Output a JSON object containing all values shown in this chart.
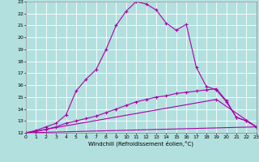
{
  "xlabel": "Windchill (Refroidissement éolien,°C)",
  "xlim": [
    0,
    23
  ],
  "ylim": [
    12,
    23
  ],
  "xticks": [
    0,
    1,
    2,
    3,
    4,
    5,
    6,
    7,
    8,
    9,
    10,
    11,
    12,
    13,
    14,
    15,
    16,
    17,
    18,
    19,
    20,
    21,
    22,
    23
  ],
  "yticks": [
    12,
    13,
    14,
    15,
    16,
    17,
    18,
    19,
    20,
    21,
    22,
    23
  ],
  "bg_color": "#b2e0df",
  "grid_color": "#ffffff",
  "line_color": "#aa00aa",
  "lines": [
    {
      "x": [
        0,
        1,
        2,
        3,
        4,
        5,
        6,
        7,
        8,
        9,
        10,
        11,
        12,
        13,
        14,
        15,
        16,
        17,
        18,
        19,
        20,
        21,
        22,
        23
      ],
      "y": [
        12,
        12.2,
        12.5,
        12.8,
        13.5,
        15.5,
        16.5,
        17.3,
        19.0,
        21.0,
        22.2,
        23.0,
        22.8,
        22.3,
        21.2,
        20.6,
        21.1,
        17.5,
        15.9,
        15.6,
        14.6,
        13.3,
        13.0,
        12.5
      ],
      "marker": "+"
    },
    {
      "x": [
        0,
        1,
        2,
        3,
        4,
        5,
        6,
        7,
        8,
        9,
        10,
        11,
        12,
        13,
        14,
        15,
        16,
        17,
        18,
        19,
        20,
        21,
        22,
        23
      ],
      "y": [
        12,
        12.1,
        12.3,
        12.5,
        12.8,
        13.0,
        13.2,
        13.4,
        13.7,
        14.0,
        14.3,
        14.6,
        14.8,
        15.0,
        15.1,
        15.3,
        15.4,
        15.5,
        15.6,
        15.7,
        14.7,
        13.3,
        13.0,
        12.5
      ],
      "marker": "+"
    },
    {
      "x": [
        0,
        23
      ],
      "y": [
        12,
        12.5
      ],
      "marker": "+"
    },
    {
      "x": [
        0,
        19,
        23
      ],
      "y": [
        12,
        14.8,
        12.5
      ],
      "marker": "+"
    }
  ]
}
